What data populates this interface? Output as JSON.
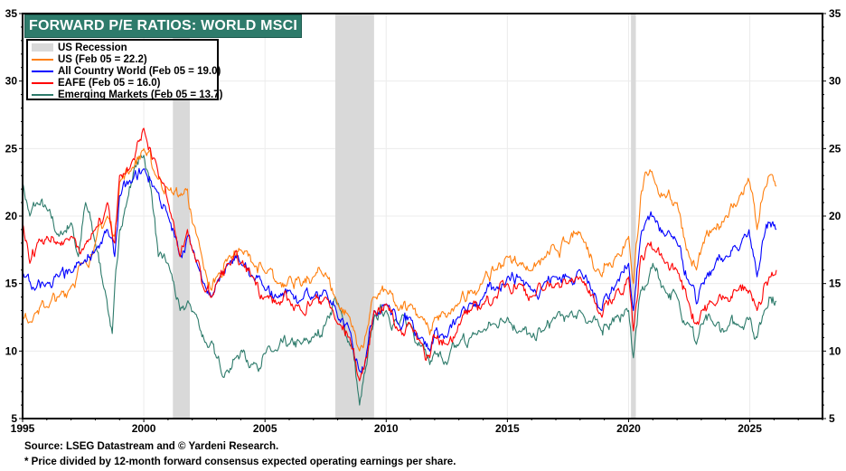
{
  "chart_data": {
    "type": "line",
    "title": "FORWARD P/E RATIOS: WORLD MSCI",
    "xlabel": "",
    "ylabel": "",
    "xlim": [
      1995,
      2028
    ],
    "ylim": [
      5,
      35
    ],
    "x_ticks": [
      1995,
      2000,
      2005,
      2010,
      2015,
      2020,
      2025
    ],
    "y_ticks": [
      5,
      10,
      15,
      20,
      25,
      30,
      35
    ],
    "grid": true,
    "legend_position": "top-left",
    "recessions": [
      {
        "start": 2001.2,
        "end": 2001.9
      },
      {
        "start": 2007.9,
        "end": 2009.5
      },
      {
        "start": 2020.1,
        "end": 2020.3
      }
    ],
    "legend": [
      {
        "label": "US Recession",
        "kind": "band",
        "color": "#d9d9d9"
      },
      {
        "label": "US (Feb 05 = 22.2)",
        "kind": "line",
        "color": "#ff7f0e"
      },
      {
        "label": "All Country World (Feb 05 = 19.0)",
        "kind": "line",
        "color": "#0000ff"
      },
      {
        "label": "EAFE (Feb 05 = 16.0)",
        "kind": "line",
        "color": "#ff0000"
      },
      {
        "label": "Emerging Markets (Feb 05 = 13.7)",
        "kind": "line",
        "color": "#2e7b6b"
      }
    ],
    "series": [
      {
        "name": "US",
        "color": "#ff7f0e",
        "x": [
          1995.0,
          1995.5,
          1996.0,
          1996.5,
          1997.0,
          1997.5,
          1998.0,
          1998.5,
          1998.8,
          1999.0,
          1999.5,
          2000.0,
          2000.5,
          2001.0,
          2001.5,
          2001.8,
          2002.0,
          2002.5,
          2002.8,
          2003.0,
          2003.5,
          2004.0,
          2004.5,
          2005.0,
          2005.5,
          2006.0,
          2006.5,
          2007.0,
          2007.5,
          2008.0,
          2008.5,
          2008.9,
          2009.2,
          2009.5,
          2010.0,
          2010.5,
          2011.0,
          2011.5,
          2011.8,
          2012.0,
          2012.5,
          2013.0,
          2013.5,
          2014.0,
          2014.5,
          2015.0,
          2015.5,
          2016.0,
          2016.5,
          2017.0,
          2017.5,
          2018.0,
          2018.9,
          2019.0,
          2019.5,
          2020.0,
          2020.2,
          2020.5,
          2020.8,
          2021.0,
          2021.5,
          2022.0,
          2022.5,
          2022.8,
          2023.0,
          2023.5,
          2024.0,
          2024.5,
          2024.9,
          2025.0,
          2025.3,
          2025.6,
          2025.8,
          2026.1
        ],
        "values": [
          12.3,
          12.8,
          13.3,
          14.0,
          14.8,
          16.5,
          18.0,
          20.0,
          18.5,
          22.5,
          23.5,
          25.0,
          23.0,
          22.0,
          21.5,
          22.0,
          19.5,
          16.0,
          14.5,
          15.5,
          17.0,
          17.5,
          16.5,
          15.8,
          15.0,
          15.5,
          14.8,
          15.5,
          15.8,
          13.5,
          12.5,
          10.0,
          11.5,
          14.0,
          14.5,
          13.0,
          13.5,
          12.5,
          11.2,
          12.5,
          12.5,
          13.5,
          14.5,
          15.2,
          16.0,
          17.0,
          16.5,
          16.0,
          16.8,
          17.5,
          18.0,
          18.8,
          15.5,
          16.5,
          17.0,
          18.5,
          15.0,
          21.5,
          23.0,
          23.0,
          21.5,
          21.0,
          17.0,
          16.0,
          17.5,
          19.0,
          20.0,
          21.0,
          22.5,
          22.5,
          19.0,
          22.0,
          23.0,
          22.2
        ]
      },
      {
        "name": "All Country World",
        "color": "#0000ff",
        "x": [
          1995.0,
          1995.5,
          1996.0,
          1996.5,
          1997.0,
          1997.5,
          1998.0,
          1998.5,
          1998.8,
          1999.0,
          1999.5,
          2000.0,
          2000.5,
          2001.0,
          2001.5,
          2001.8,
          2002.0,
          2002.5,
          2002.8,
          2003.0,
          2003.5,
          2004.0,
          2004.5,
          2005.0,
          2005.5,
          2006.0,
          2006.5,
          2007.0,
          2007.5,
          2008.0,
          2008.5,
          2008.9,
          2009.2,
          2009.5,
          2010.0,
          2010.5,
          2011.0,
          2011.5,
          2011.8,
          2012.0,
          2012.5,
          2013.0,
          2013.5,
          2014.0,
          2014.5,
          2015.0,
          2015.5,
          2016.0,
          2016.5,
          2017.0,
          2017.5,
          2018.0,
          2018.9,
          2019.0,
          2019.5,
          2020.0,
          2020.2,
          2020.5,
          2020.8,
          2021.0,
          2021.5,
          2022.0,
          2022.5,
          2022.8,
          2023.0,
          2023.5,
          2024.0,
          2024.5,
          2024.9,
          2025.0,
          2025.3,
          2025.6,
          2025.8,
          2026.1
        ],
        "values": [
          15.8,
          14.5,
          15.0,
          15.5,
          15.8,
          16.5,
          17.5,
          19.0,
          17.0,
          21.5,
          22.5,
          23.5,
          22.0,
          20.0,
          17.0,
          18.5,
          17.5,
          15.0,
          14.0,
          15.0,
          16.5,
          16.5,
          15.5,
          14.5,
          14.0,
          14.5,
          13.8,
          14.0,
          14.5,
          12.5,
          11.5,
          8.5,
          10.0,
          13.0,
          13.5,
          12.0,
          12.5,
          11.0,
          10.0,
          11.5,
          11.0,
          12.5,
          13.5,
          14.0,
          14.5,
          15.5,
          15.5,
          14.5,
          15.0,
          15.5,
          15.5,
          16.0,
          13.0,
          14.0,
          15.0,
          16.5,
          13.0,
          18.5,
          20.0,
          20.0,
          18.5,
          18.0,
          15.0,
          13.5,
          15.0,
          16.0,
          17.0,
          17.5,
          18.5,
          18.5,
          15.5,
          18.5,
          19.5,
          19.0
        ]
      },
      {
        "name": "EAFE",
        "color": "#ff0000",
        "x": [
          1995.0,
          1995.3,
          1995.6,
          1996.0,
          1996.5,
          1997.0,
          1997.5,
          1998.0,
          1998.5,
          1998.8,
          1999.0,
          1999.5,
          2000.0,
          2000.5,
          2001.0,
          2001.5,
          2001.8,
          2002.0,
          2002.5,
          2002.8,
          2003.0,
          2003.5,
          2004.0,
          2004.5,
          2005.0,
          2005.5,
          2006.0,
          2006.5,
          2007.0,
          2007.5,
          2008.0,
          2008.5,
          2008.9,
          2009.2,
          2009.5,
          2010.0,
          2010.5,
          2011.0,
          2011.5,
          2011.8,
          2012.0,
          2012.5,
          2013.0,
          2013.5,
          2014.0,
          2014.5,
          2015.0,
          2015.5,
          2016.0,
          2016.5,
          2017.0,
          2017.5,
          2018.0,
          2018.9,
          2019.0,
          2019.5,
          2020.0,
          2020.2,
          2020.5,
          2020.8,
          2021.0,
          2021.5,
          2022.0,
          2022.5,
          2022.8,
          2023.0,
          2023.5,
          2024.0,
          2024.5,
          2024.9,
          2025.0,
          2025.3,
          2025.6,
          2025.8,
          2026.1
        ],
        "values": [
          19.5,
          16.5,
          18.0,
          18.5,
          18.0,
          18.5,
          17.5,
          19.0,
          21.0,
          18.0,
          23.0,
          24.0,
          26.5,
          24.0,
          21.0,
          17.0,
          19.0,
          17.5,
          14.5,
          14.0,
          15.0,
          16.5,
          16.5,
          15.5,
          14.0,
          13.5,
          13.8,
          13.0,
          13.8,
          14.0,
          12.0,
          11.0,
          7.8,
          9.5,
          13.0,
          13.5,
          11.5,
          12.0,
          10.5,
          9.5,
          11.0,
          10.5,
          12.0,
          13.0,
          13.5,
          14.0,
          15.0,
          15.0,
          14.0,
          14.5,
          15.0,
          15.0,
          15.5,
          12.5,
          13.5,
          14.5,
          15.5,
          11.5,
          17.0,
          18.0,
          17.5,
          16.5,
          16.0,
          13.5,
          12.0,
          13.0,
          13.5,
          14.0,
          14.5,
          14.5,
          14.5,
          13.0,
          15.0,
          15.5,
          16.0
        ]
      },
      {
        "name": "Emerging Markets",
        "color": "#2e7b6b",
        "x": [
          1995.0,
          1995.3,
          1995.6,
          1996.0,
          1996.5,
          1997.0,
          1997.3,
          1997.6,
          1998.0,
          1998.4,
          1998.7,
          1999.0,
          1999.3,
          1999.6,
          2000.0,
          2000.3,
          2000.6,
          2001.0,
          2001.5,
          2001.9,
          2002.2,
          2002.6,
          2003.0,
          2003.4,
          2003.8,
          2004.0,
          2004.5,
          2005.0,
          2005.5,
          2006.0,
          2006.5,
          2007.0,
          2007.5,
          2007.9,
          2008.3,
          2008.6,
          2008.9,
          2009.2,
          2009.5,
          2010.0,
          2010.5,
          2011.0,
          2011.5,
          2011.8,
          2012.0,
          2012.5,
          2013.0,
          2013.5,
          2014.0,
          2014.5,
          2015.0,
          2015.5,
          2016.0,
          2016.5,
          2017.0,
          2017.5,
          2018.0,
          2018.9,
          2019.0,
          2019.5,
          2020.0,
          2020.2,
          2020.5,
          2020.8,
          2021.0,
          2021.5,
          2022.0,
          2022.5,
          2022.8,
          2023.0,
          2023.5,
          2024.0,
          2024.5,
          2024.9,
          2025.0,
          2025.3,
          2025.6,
          2025.8,
          2026.1
        ],
        "values": [
          22.5,
          20.0,
          21.0,
          20.5,
          18.5,
          19.5,
          17.0,
          21.0,
          18.0,
          14.5,
          11.3,
          19.0,
          21.0,
          23.5,
          24.5,
          22.0,
          17.0,
          16.5,
          13.0,
          13.5,
          12.5,
          10.5,
          9.5,
          8.5,
          9.5,
          10.0,
          9.0,
          9.8,
          10.0,
          10.5,
          10.5,
          11.0,
          12.0,
          14.0,
          11.5,
          10.5,
          6.0,
          9.0,
          12.5,
          13.0,
          12.0,
          12.0,
          10.5,
          9.0,
          10.0,
          9.0,
          10.5,
          11.0,
          11.5,
          12.0,
          12.5,
          11.5,
          11.0,
          11.5,
          12.5,
          12.5,
          13.0,
          11.5,
          12.0,
          12.5,
          13.0,
          9.5,
          14.5,
          15.0,
          16.5,
          14.5,
          14.0,
          12.0,
          10.5,
          12.0,
          12.0,
          11.5,
          12.0,
          12.5,
          12.5,
          11.0,
          13.0,
          14.0,
          13.7
        ]
      }
    ]
  },
  "footer": {
    "source": "Source: LSEG Datastream and © Yardeni Research.",
    "note": "* Price divided by 12-month forward consensus expected operating earnings per share."
  }
}
